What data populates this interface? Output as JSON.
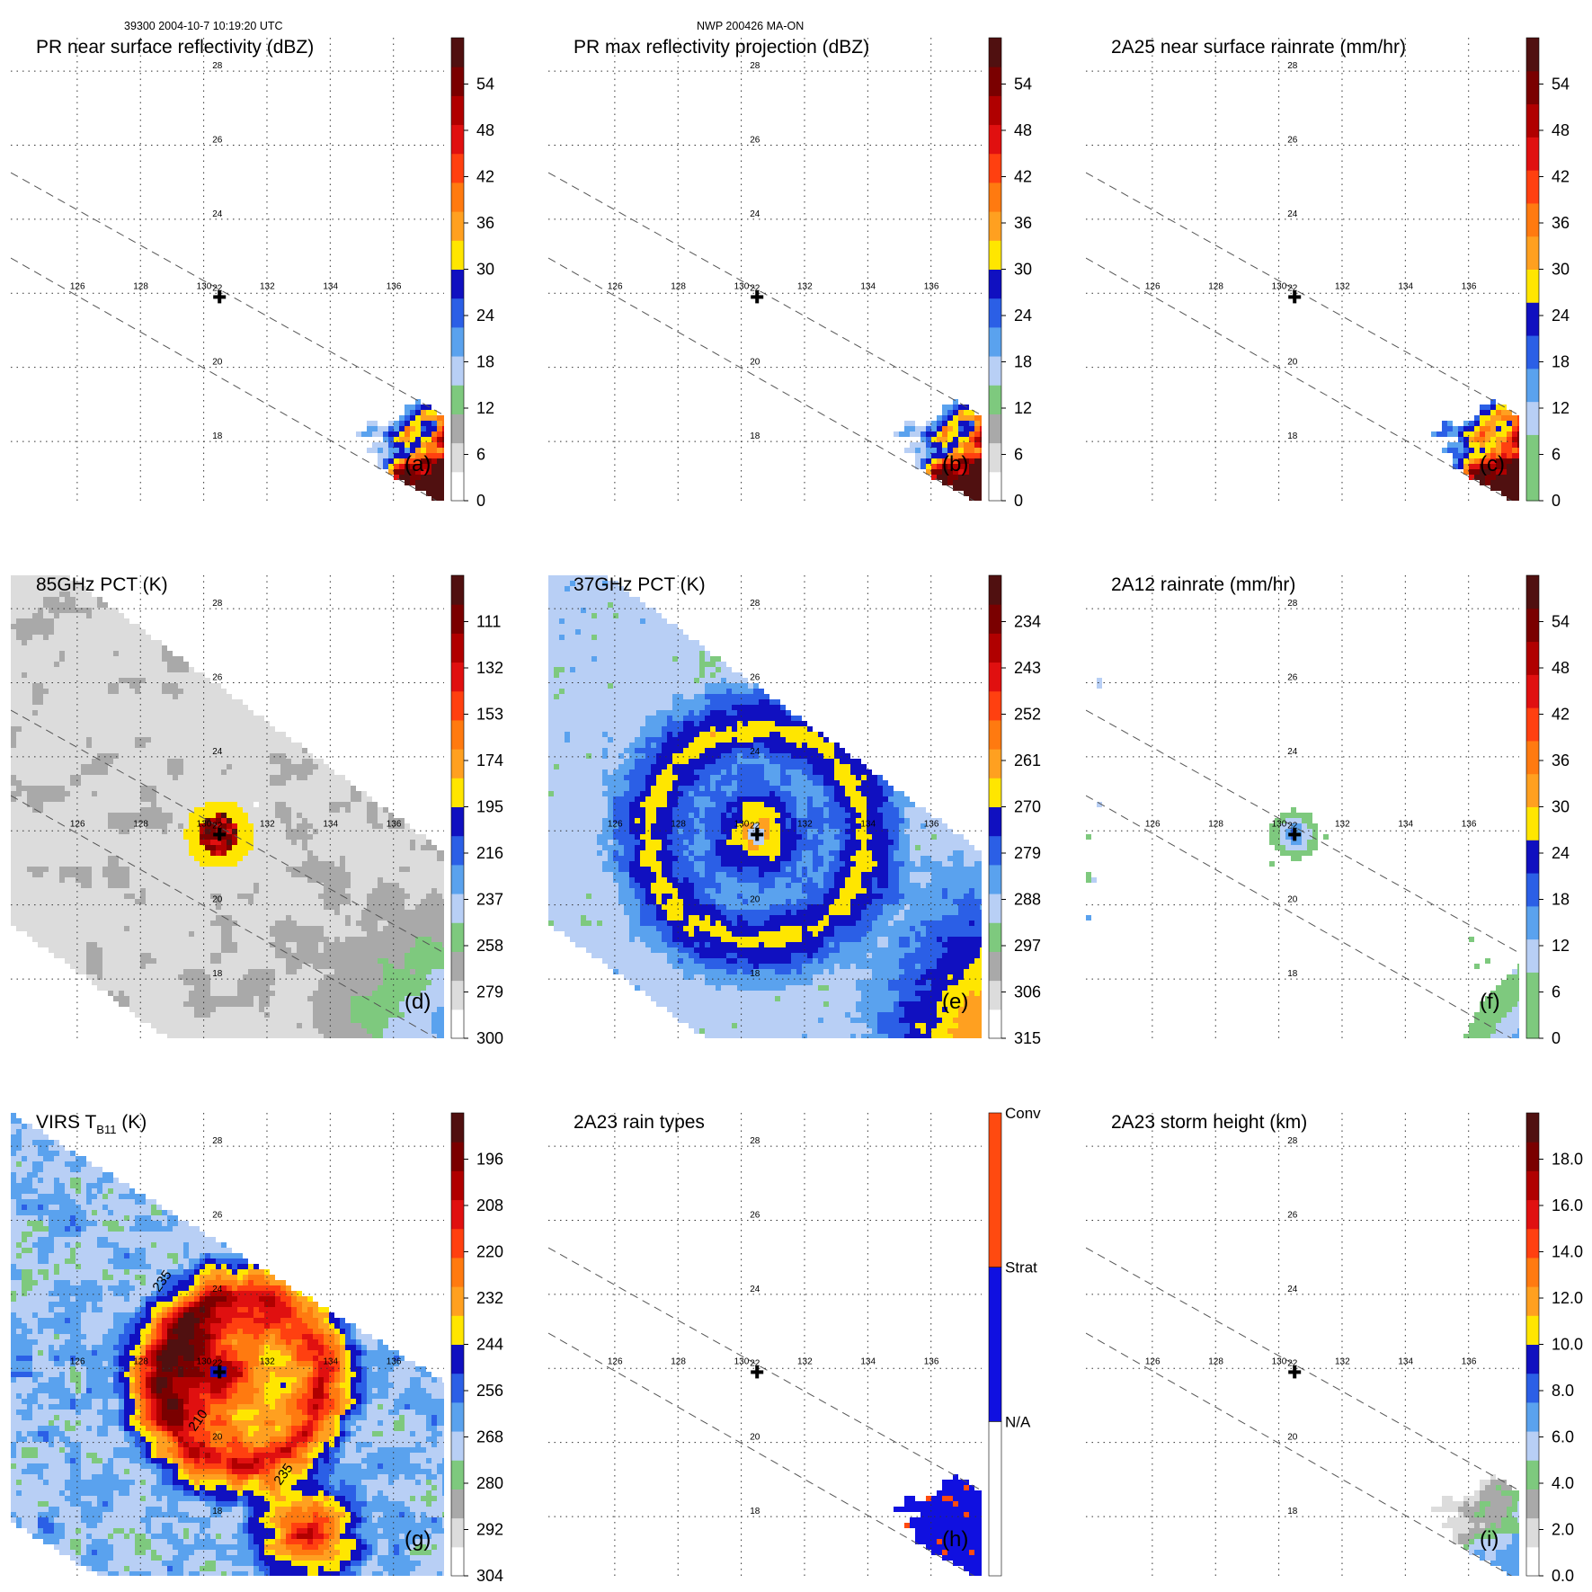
{
  "header": {
    "orbit_time": "39300 2004-10-7 10:19:20 UTC",
    "storm": "NWP 200426 MA-ON"
  },
  "map": {
    "lon_ticks": [
      "126",
      "128",
      "130",
      "132",
      "134",
      "136"
    ],
    "lat_ticks": [
      "18",
      "20",
      "22",
      "24",
      "26",
      "28"
    ],
    "storm_center_marker": "plus-icon"
  },
  "chart_data": [
    {
      "type": "heatmap",
      "panel_label": "(a)",
      "title": "PR near surface reflectivity (dBZ)",
      "units": "dBZ",
      "variable": "pr",
      "colorbar": {
        "ticks": [
          "0",
          "6",
          "12",
          "18",
          "24",
          "30",
          "36",
          "42",
          "48",
          "54"
        ],
        "colors": [
          "#ffffff",
          "#dcdcdc",
          "#a9a9a9",
          "#7ec97e",
          "#b8cff5",
          "#5aa2ee",
          "#2b5fe6",
          "#1010c0",
          "#ffe600",
          "#ffa020",
          "#ff7a10",
          "#ff4010",
          "#e01010",
          "#b00000",
          "#7a0000",
          "#501010"
        ]
      }
    },
    {
      "type": "heatmap",
      "panel_label": "(b)",
      "title": "PR max reflectivity projection (dBZ)",
      "units": "dBZ",
      "variable": "pr",
      "colorbar": {
        "ticks": [
          "0",
          "6",
          "12",
          "18",
          "24",
          "30",
          "36",
          "42",
          "48",
          "54"
        ],
        "colors": [
          "#ffffff",
          "#dcdcdc",
          "#a9a9a9",
          "#7ec97e",
          "#b8cff5",
          "#5aa2ee",
          "#2b5fe6",
          "#1010c0",
          "#ffe600",
          "#ffa020",
          "#ff7a10",
          "#ff4010",
          "#e01010",
          "#b00000",
          "#7a0000",
          "#501010"
        ]
      }
    },
    {
      "type": "heatmap",
      "panel_label": "(c)",
      "title": "2A25 near surface rainrate (mm/hr)",
      "units": "mm/hr",
      "variable": "pr",
      "colorbar": {
        "ticks": [
          "0",
          "6",
          "12",
          "18",
          "24",
          "30",
          "36",
          "42",
          "48",
          "54"
        ],
        "colors": [
          "#7ec97e",
          "#7ec97e",
          "#b8cff5",
          "#5aa2ee",
          "#2b5fe6",
          "#1010c0",
          "#ffe600",
          "#ffa020",
          "#ff7a10",
          "#ff4010",
          "#e01010",
          "#b00000",
          "#7a0000",
          "#501010"
        ]
      }
    },
    {
      "type": "heatmap",
      "panel_label": "(d)",
      "title": "85GHz PCT (K)",
      "units": "K",
      "variable": "tmi85",
      "colorbar": {
        "ticks": [
          "300",
          "279",
          "258",
          "237",
          "216",
          "195",
          "174",
          "153",
          "132",
          "111"
        ],
        "colors": [
          "#ffffff",
          "#dcdcdc",
          "#a9a9a9",
          "#7ec97e",
          "#b8cff5",
          "#5aa2ee",
          "#2b5fe6",
          "#1010c0",
          "#ffe600",
          "#ffa020",
          "#ff7a10",
          "#ff4010",
          "#e01010",
          "#b00000",
          "#7a0000",
          "#501010"
        ]
      }
    },
    {
      "type": "heatmap",
      "panel_label": "(e)",
      "title": "37GHz PCT (K)",
      "units": "K",
      "variable": "tmi37",
      "colorbar": {
        "ticks": [
          "315",
          "306",
          "297",
          "288",
          "279",
          "270",
          "261",
          "252",
          "243",
          "234"
        ],
        "colors": [
          "#ffffff",
          "#dcdcdc",
          "#a9a9a9",
          "#7ec97e",
          "#b8cff5",
          "#5aa2ee",
          "#2b5fe6",
          "#1010c0",
          "#ffe600",
          "#ffa020",
          "#ff7a10",
          "#ff4010",
          "#e01010",
          "#b00000",
          "#7a0000",
          "#501010"
        ]
      }
    },
    {
      "type": "heatmap",
      "panel_label": "(f)",
      "title": "2A12 rainrate (mm/hr)",
      "units": "mm/hr",
      "variable": "rain12",
      "colorbar": {
        "ticks": [
          "0",
          "6",
          "12",
          "18",
          "24",
          "30",
          "36",
          "42",
          "48",
          "54"
        ],
        "colors": [
          "#7ec97e",
          "#7ec97e",
          "#b8cff5",
          "#5aa2ee",
          "#2b5fe6",
          "#1010c0",
          "#ffe600",
          "#ffa020",
          "#ff7a10",
          "#ff4010",
          "#e01010",
          "#b00000",
          "#7a0000",
          "#501010"
        ]
      }
    },
    {
      "type": "heatmap",
      "panel_label": "(g)",
      "title_main": "VIRS T",
      "title_sub": "B11",
      "title_units": " (K)",
      "units": "K",
      "variable": "virs",
      "contour_labels": [
        "235",
        "210",
        "235"
      ],
      "colorbar": {
        "ticks": [
          "304",
          "292",
          "280",
          "268",
          "256",
          "244",
          "232",
          "220",
          "208",
          "196"
        ],
        "colors": [
          "#ffffff",
          "#dcdcdc",
          "#a9a9a9",
          "#7ec97e",
          "#b8cff5",
          "#5aa2ee",
          "#2b5fe6",
          "#1010c0",
          "#ffe600",
          "#ffa020",
          "#ff7a10",
          "#ff4010",
          "#e01010",
          "#b00000",
          "#7a0000",
          "#501010"
        ]
      }
    },
    {
      "type": "heatmap",
      "panel_label": "(h)",
      "title": "2A23 rain types",
      "units": "category",
      "variable": "raintype",
      "colorbar": {
        "categorical": true,
        "labels": [
          "N/A",
          "Strat",
          "Conv"
        ],
        "colors": [
          "#ffffff",
          "#1010e0",
          "#ff4a10"
        ]
      }
    },
    {
      "type": "heatmap",
      "panel_label": "(i)",
      "title": "2A23 storm height (km)",
      "units": "km",
      "variable": "height",
      "colorbar": {
        "ticks": [
          "0.0",
          "2.0",
          "4.0",
          "6.0",
          "8.0",
          "10.0",
          "12.0",
          "14.0",
          "16.0",
          "18.0"
        ],
        "colors": [
          "#ffffff",
          "#dcdcdc",
          "#a9a9a9",
          "#7ec97e",
          "#b8cff5",
          "#5aa2ee",
          "#2b5fe6",
          "#1010c0",
          "#ffe600",
          "#ffa020",
          "#ff7a10",
          "#ff4010",
          "#e01010",
          "#b00000",
          "#7a0000",
          "#501010"
        ]
      }
    }
  ]
}
